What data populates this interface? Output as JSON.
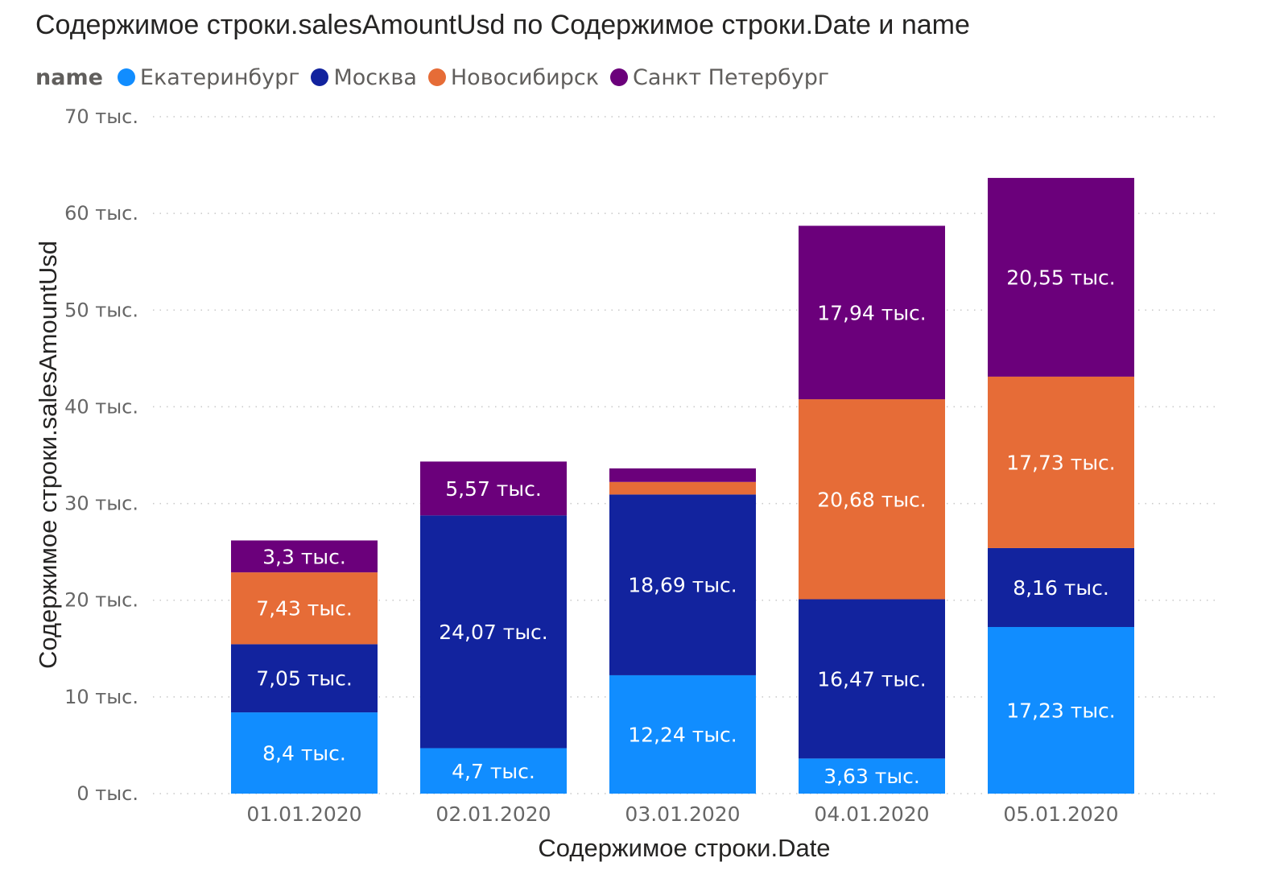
{
  "chart_data": {
    "type": "bar",
    "stacked": true,
    "title": "Содержимое строки.salesAmountUsd по Содержимое строки.Date и name",
    "xlabel": "Содержимое строки.Date",
    "ylabel": "Содержимое строки.salesAmountUsd",
    "legend_title": "name",
    "legend_position": "top-left",
    "grid": true,
    "ylim": [
      0,
      70000
    ],
    "yticks": [
      0,
      10000,
      20000,
      30000,
      40000,
      50000,
      60000,
      70000
    ],
    "ytick_labels": [
      "0 тыс.",
      "10 тыс.",
      "20 тыс.",
      "30 тыс.",
      "40 тыс.",
      "50 тыс.",
      "60 тыс.",
      "70 тыс."
    ],
    "categories": [
      "01.01.2020",
      "02.01.2020",
      "03.01.2020",
      "04.01.2020",
      "05.01.2020"
    ],
    "series": [
      {
        "name": "Екатеринбург",
        "color": "#118DFF",
        "values": [
          8400,
          4700,
          12240,
          3630,
          17230
        ],
        "labels": [
          "8,4 тыс.",
          "4,7 тыс.",
          "12,24 тыс.",
          "3,63 тыс.",
          "17,23 тыс."
        ]
      },
      {
        "name": "Москва",
        "color": "#12239E",
        "values": [
          7050,
          24070,
          18690,
          16470,
          8160
        ],
        "labels": [
          "7,05 тыс.",
          "24,07 тыс.",
          "18,69 тыс.",
          "16,47 тыс.",
          "8,16 тыс."
        ]
      },
      {
        "name": "Новосибирск",
        "color": "#E66C37",
        "values": [
          7430,
          0,
          1300,
          20680,
          17730
        ],
        "labels": [
          "7,43 тыс.",
          "",
          "",
          "20,68 тыс.",
          "17,73 тыс."
        ]
      },
      {
        "name": "Санкт Петербург",
        "color": "#6B007B",
        "values": [
          3300,
          5570,
          1400,
          17940,
          20550
        ],
        "labels": [
          "3,3 тыс.",
          "5,57 тыс.",
          "",
          "17,94 тыс.",
          "20,55 тыс."
        ]
      }
    ]
  }
}
